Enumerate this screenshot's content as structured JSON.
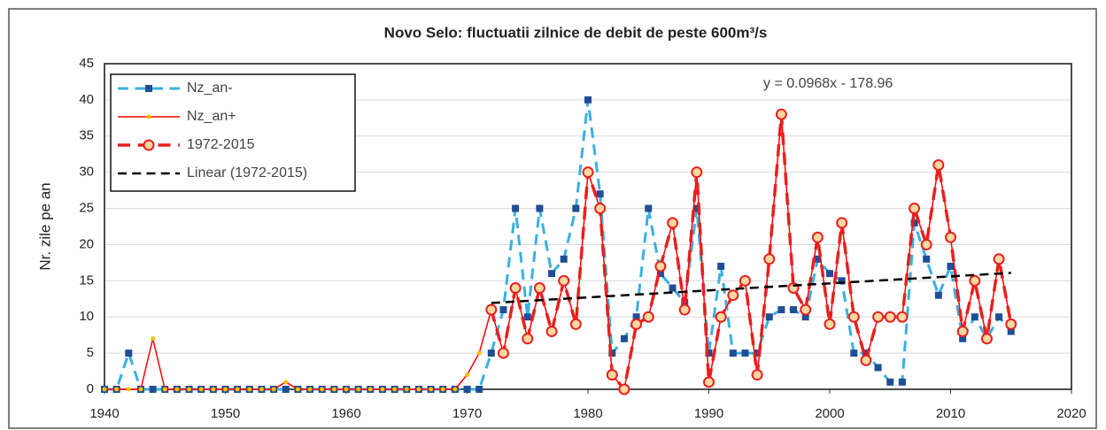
{
  "chart_data": {
    "type": "line",
    "title": "Novo Selo: fluctuatii zilnice de debit de peste 600m³/s",
    "ylabel": "Nr. zile pe an",
    "annotation": "y = 0.0968x - 178.96",
    "x": [
      1940,
      1941,
      1942,
      1943,
      1944,
      1945,
      1946,
      1947,
      1948,
      1949,
      1950,
      1951,
      1952,
      1953,
      1954,
      1955,
      1956,
      1957,
      1958,
      1959,
      1960,
      1961,
      1962,
      1963,
      1964,
      1965,
      1966,
      1967,
      1968,
      1969,
      1970,
      1971,
      1972,
      1973,
      1974,
      1975,
      1976,
      1977,
      1978,
      1979,
      1980,
      1981,
      1982,
      1983,
      1984,
      1985,
      1986,
      1987,
      1988,
      1989,
      1990,
      1991,
      1992,
      1993,
      1994,
      1995,
      1996,
      1997,
      1998,
      1999,
      2000,
      2001,
      2002,
      2003,
      2004,
      2005,
      2006,
      2007,
      2008,
      2009,
      2010,
      2011,
      2012,
      2013,
      2014,
      2015
    ],
    "series": [
      {
        "name": "Nz_an-",
        "color": "#3ab0e2",
        "marker_color": "#1f4e96",
        "marker": "square",
        "line_style": "dashed",
        "line_width": 3,
        "values": [
          0,
          0,
          5,
          0,
          0,
          0,
          0,
          0,
          0,
          0,
          0,
          0,
          0,
          0,
          0,
          0,
          0,
          0,
          0,
          0,
          0,
          0,
          0,
          0,
          0,
          0,
          0,
          0,
          0,
          0,
          0,
          0,
          5,
          11,
          25,
          10,
          25,
          16,
          18,
          25,
          40,
          27,
          5,
          7,
          10,
          25,
          16,
          14,
          12,
          25,
          5,
          17,
          5,
          5,
          5,
          10,
          11,
          11,
          10,
          18,
          16,
          15,
          5,
          5,
          3,
          1,
          1,
          23,
          18,
          13,
          17,
          7,
          10,
          7,
          10,
          8
        ]
      },
      {
        "name": "Nz_an+",
        "color": "#ff0000",
        "marker_color": "#ffc000",
        "marker": "dot",
        "line_style": "solid",
        "line_width": 1.5,
        "values": [
          0,
          0,
          0,
          0,
          7,
          0,
          0,
          0,
          0,
          0,
          0,
          0,
          0,
          0,
          0,
          1,
          0,
          0,
          0,
          0,
          0,
          0,
          0,
          0,
          0,
          0,
          0,
          0,
          0,
          0,
          2,
          5,
          11,
          5,
          14,
          7,
          14,
          8,
          15,
          9,
          30,
          25,
          2,
          0,
          9,
          10,
          17,
          23,
          11,
          30,
          1,
          10,
          13,
          15,
          2,
          18,
          38,
          14,
          11,
          21,
          9,
          23,
          10,
          4,
          10,
          10,
          10,
          25,
          20,
          31,
          21,
          8,
          15,
          7,
          18,
          9
        ]
      },
      {
        "name": "1972-2015",
        "color": "#e8201e",
        "marker_color": "#ffd7a0",
        "marker": "circle",
        "line_style": "dashed",
        "line_width": 3.5,
        "values": [
          null,
          null,
          null,
          null,
          null,
          null,
          null,
          null,
          null,
          null,
          null,
          null,
          null,
          null,
          null,
          null,
          null,
          null,
          null,
          null,
          null,
          null,
          null,
          null,
          null,
          null,
          null,
          null,
          null,
          null,
          null,
          null,
          11,
          5,
          14,
          7,
          14,
          8,
          15,
          9,
          30,
          25,
          2,
          0,
          9,
          10,
          17,
          23,
          11,
          30,
          1,
          10,
          13,
          15,
          2,
          18,
          38,
          14,
          11,
          21,
          9,
          23,
          10,
          4,
          10,
          10,
          10,
          25,
          20,
          31,
          21,
          8,
          15,
          7,
          18,
          9
        ]
      },
      {
        "name": "Linear (1972-2015)",
        "color": "#000000",
        "marker": "none",
        "line_style": "dashed",
        "line_width": 2.5,
        "x": [
          1972,
          2015
        ],
        "values": [
          11.93,
          16.09
        ]
      }
    ],
    "xlim": [
      1940,
      2020
    ],
    "xticks": [
      1940,
      1950,
      1960,
      1970,
      1980,
      1990,
      2000,
      2010,
      2020
    ],
    "ylim": [
      0,
      45
    ],
    "yticks": [
      0,
      5,
      10,
      15,
      20,
      25,
      30,
      35,
      40,
      45
    ],
    "grid": true,
    "legend": "upper left"
  }
}
